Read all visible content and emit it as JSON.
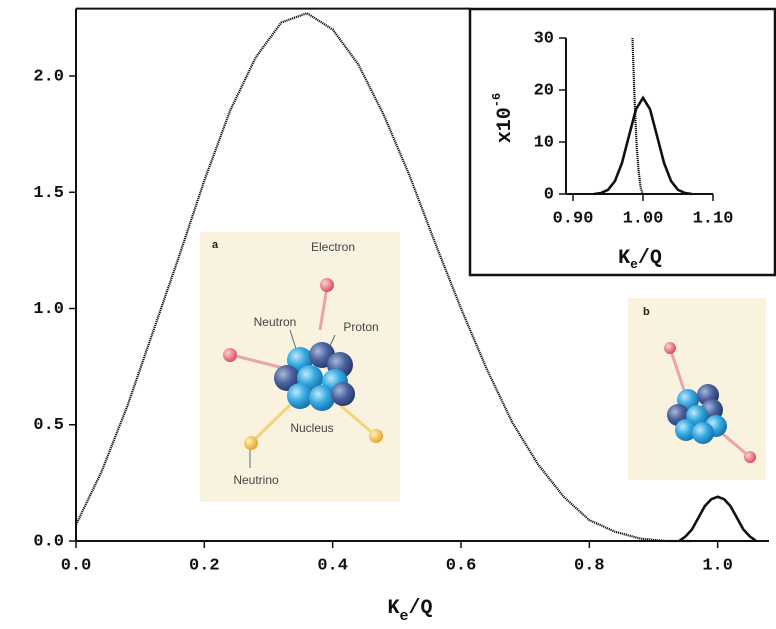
{
  "chart_data": [
    {
      "type": "line",
      "xlabel": [
        "K",
        "e",
        "/Q"
      ],
      "xlim": [
        0,
        1.08
      ],
      "ylim": [
        0,
        2.29
      ],
      "xticks": [
        {
          "value": 0,
          "label": "0.0"
        },
        {
          "value": 0.2,
          "label": "0.2"
        },
        {
          "value": 0.4,
          "label": "0.4"
        },
        {
          "value": 0.6,
          "label": "0.6"
        },
        {
          "value": 0.8,
          "label": "0.8"
        },
        {
          "value": 1.0,
          "label": "1.0"
        }
      ],
      "yticks": [
        {
          "value": 0,
          "label": "0.0"
        },
        {
          "value": 0.5,
          "label": "0.5"
        },
        {
          "value": 1.0,
          "label": "1.0"
        },
        {
          "value": 1.5,
          "label": "1.5"
        },
        {
          "value": 2.0,
          "label": "2.0"
        }
      ],
      "series": [
        {
          "style": "dotted",
          "color": "#111111",
          "x": [
            0,
            0.04,
            0.08,
            0.12,
            0.16,
            0.2,
            0.24,
            0.28,
            0.32,
            0.36,
            0.4,
            0.44,
            0.48,
            0.52,
            0.56,
            0.6,
            0.64,
            0.68,
            0.72,
            0.76,
            0.8,
            0.84,
            0.88,
            0.92,
            0.96
          ],
          "values": [
            0.07,
            0.3,
            0.58,
            0.9,
            1.22,
            1.55,
            1.85,
            2.08,
            2.23,
            2.27,
            2.2,
            2.05,
            1.83,
            1.57,
            1.28,
            1.0,
            0.74,
            0.51,
            0.33,
            0.19,
            0.09,
            0.04,
            0.01,
            0,
            0
          ]
        },
        {
          "style": "solid",
          "color": "#111111",
          "x": [
            0.94,
            0.95,
            0.96,
            0.97,
            0.98,
            0.99,
            1.0,
            1.01,
            1.02,
            1.03,
            1.04,
            1.05,
            1.06
          ],
          "values": [
            0,
            0.02,
            0.05,
            0.1,
            0.15,
            0.18,
            0.19,
            0.18,
            0.15,
            0.1,
            0.05,
            0.02,
            0
          ]
        }
      ]
    },
    {
      "type": "line",
      "xlabel": [
        "K",
        "e",
        "/Q"
      ],
      "ylabel": [
        "x10",
        "-6"
      ],
      "xlim": [
        0.89,
        1.1
      ],
      "ylim": [
        0,
        30
      ],
      "xticks": [
        {
          "value": 0.9,
          "label": "0.90"
        },
        {
          "value": 1.0,
          "label": "1.00"
        },
        {
          "value": 1.1,
          "label": "1.10"
        }
      ],
      "yticks": [
        0,
        10,
        20,
        30
      ],
      "series": [
        {
          "style": "dotted",
          "color": "#111111",
          "x": [
            0.985,
            0.988,
            0.991,
            0.994,
            0.997,
            1.0
          ],
          "values": [
            30,
            18,
            9,
            4,
            1,
            0
          ]
        },
        {
          "style": "solid",
          "color": "#111111",
          "x": [
            0.93,
            0.94,
            0.95,
            0.96,
            0.97,
            0.98,
            0.99,
            1.0,
            1.01,
            1.02,
            1.03,
            1.04,
            1.05,
            1.06,
            1.07
          ],
          "values": [
            0,
            0.2,
            0.8,
            2.5,
            6.0,
            11.2,
            16.3,
            18.5,
            16.3,
            11.2,
            6.0,
            2.5,
            0.8,
            0.2,
            0
          ]
        }
      ]
    }
  ],
  "illustrations": [
    {
      "label": "a",
      "parts": [
        "Electron",
        "Neutron",
        "Proton",
        "Nucleus",
        "Neutrino"
      ]
    },
    {
      "label": "b"
    }
  ]
}
